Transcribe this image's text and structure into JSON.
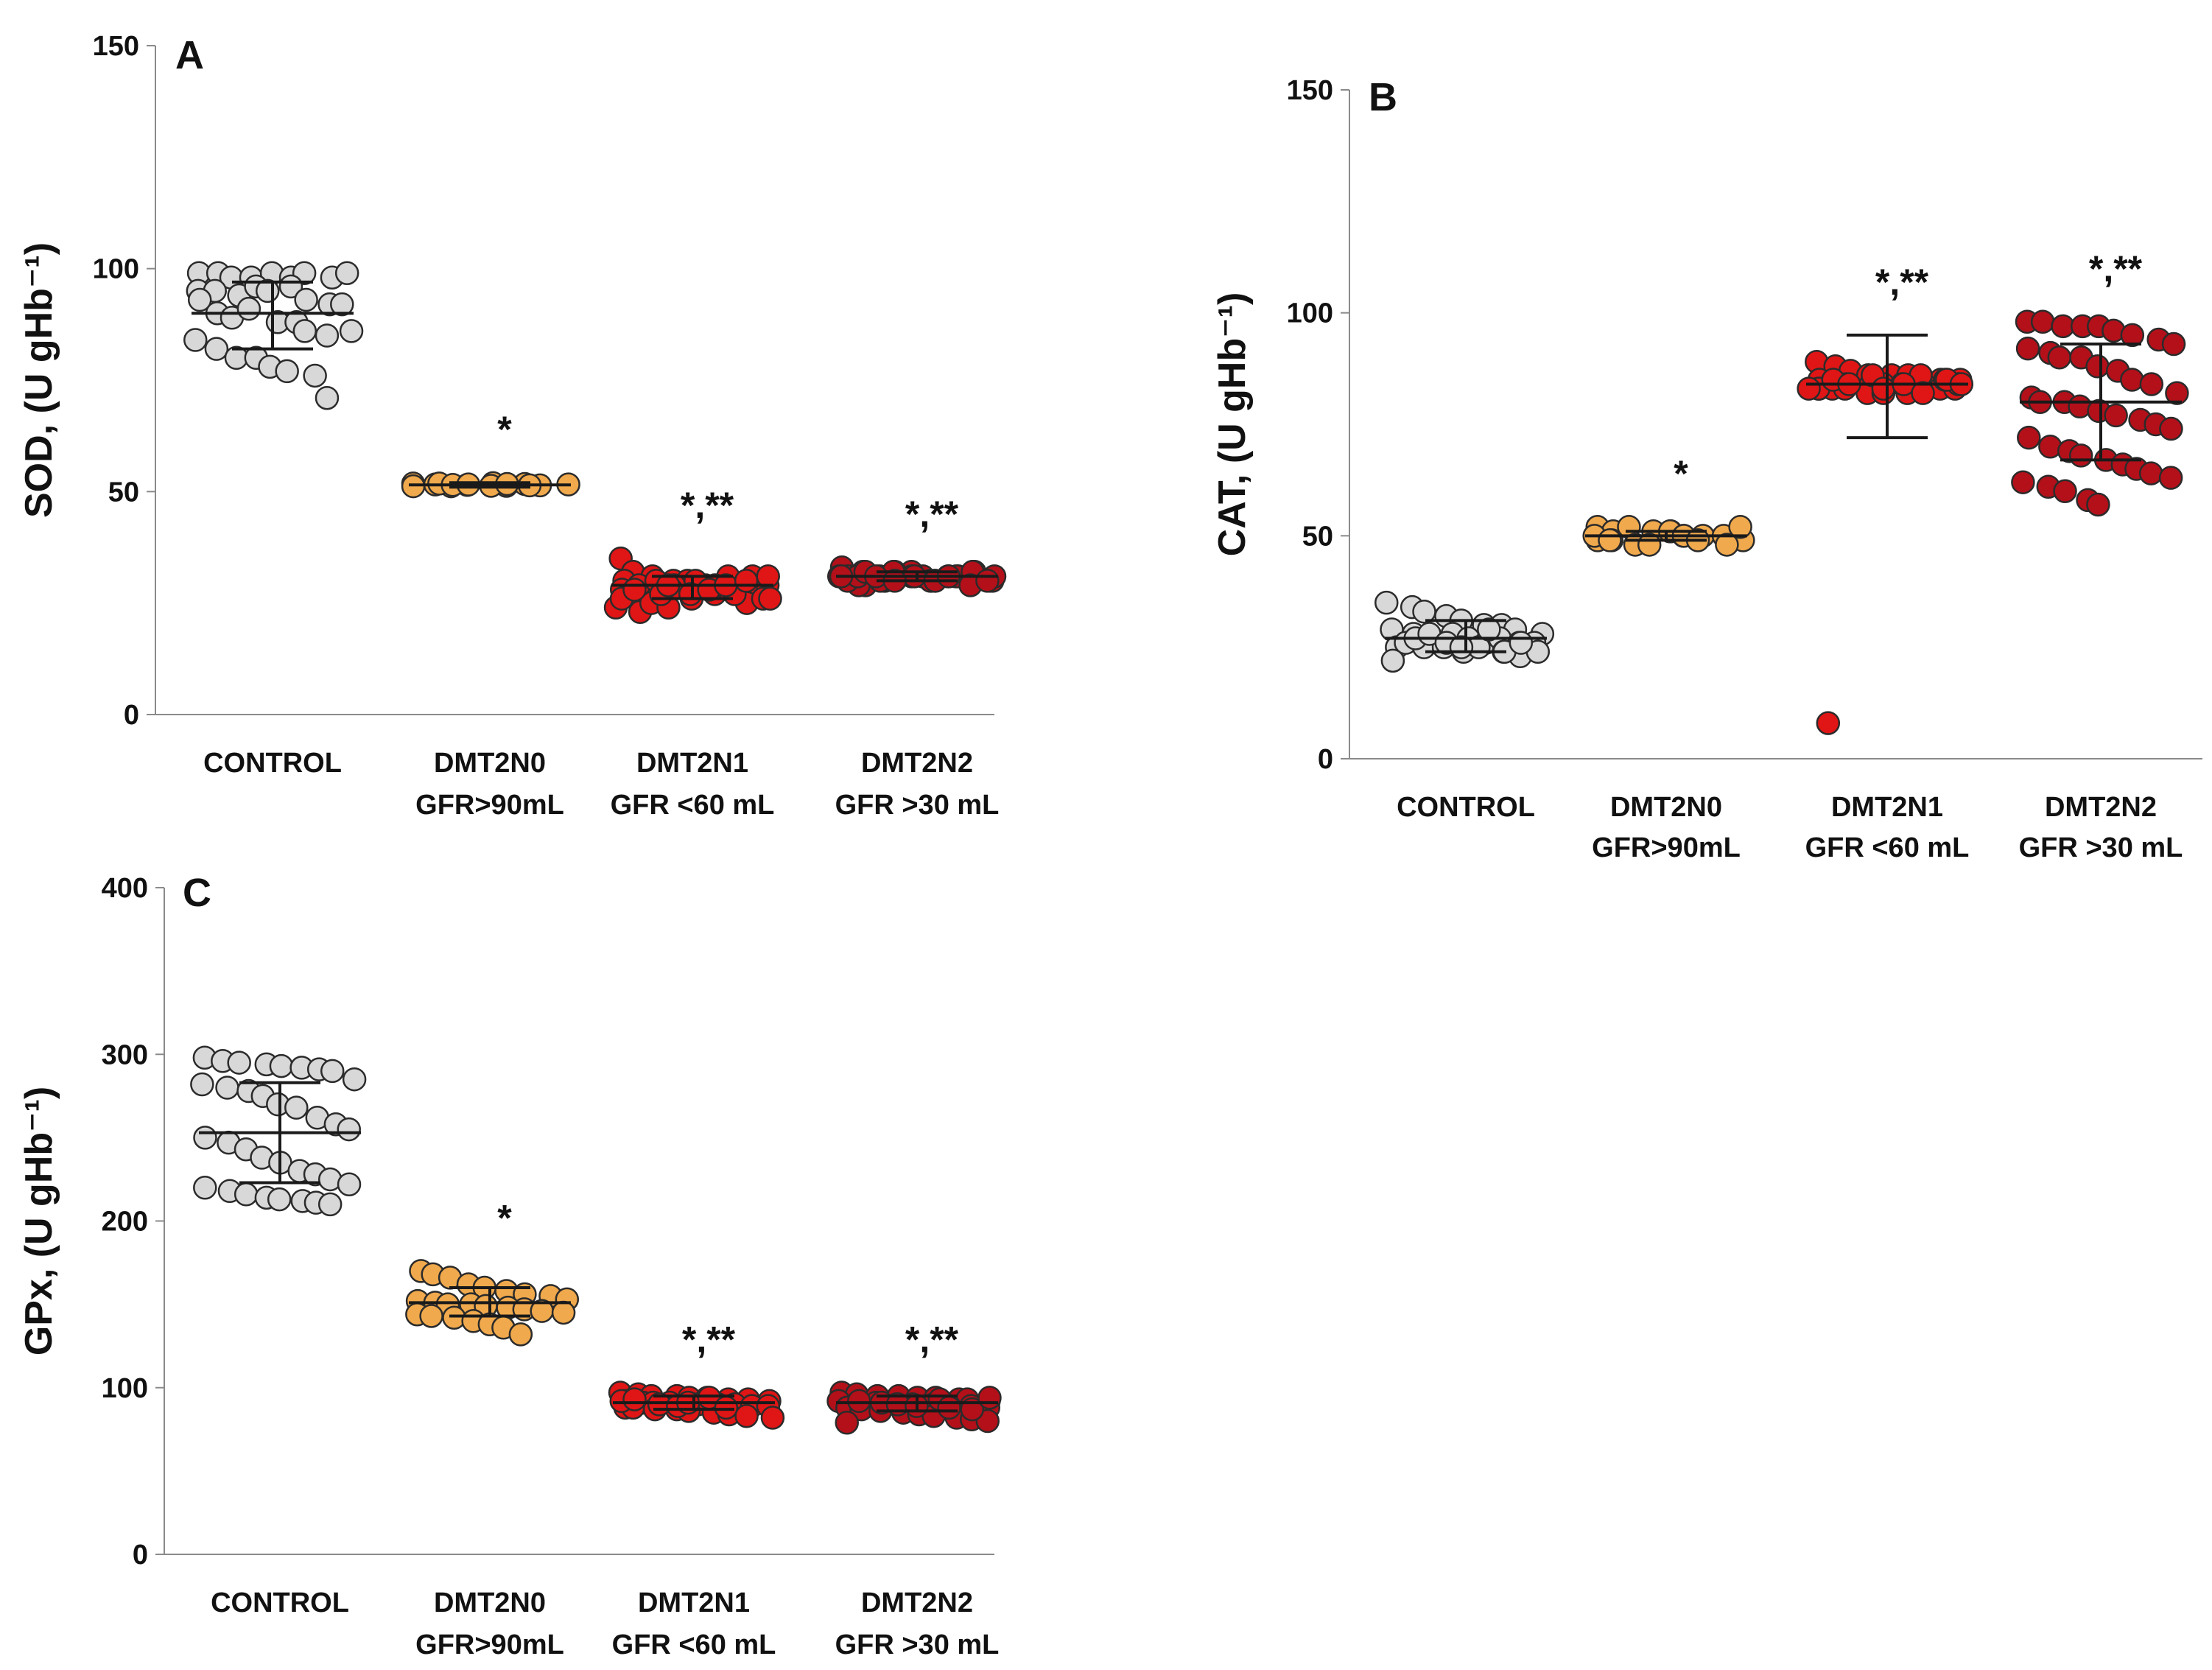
{
  "chart_data": [
    {
      "type": "scatter",
      "panel": "A",
      "ylabel": "SOD, (U gHb⁻¹)",
      "ylim": [
        0,
        150
      ],
      "yticks": [
        "0",
        "50",
        "100",
        "150"
      ],
      "groups": [
        {
          "label_line1": "CONTROL",
          "label_line2": "",
          "color": "#d8d8d8",
          "mean": 90,
          "sd_low": 82,
          "sd_high": 97,
          "significance": "",
          "values": [
            99,
            99,
            98,
            98,
            99,
            98,
            99,
            98,
            99,
            95,
            95,
            94,
            96,
            95,
            96,
            93,
            92,
            92,
            93,
            90,
            89,
            91,
            88,
            88,
            86,
            85,
            86,
            84,
            82,
            80,
            80,
            78,
            77,
            76,
            71
          ]
        },
        {
          "label_line1": "DMT2N0",
          "label_line2": "GFR>90mL",
          "color": "#f0a94c",
          "mean": 51.5,
          "sd_low": 51,
          "sd_high": 52,
          "significance": "*",
          "values": [
            51.8,
            51.6,
            51.2,
            51.5,
            51.9,
            51.3,
            51.7,
            51.4,
            51.6,
            51.2,
            51.8,
            51.5,
            51.6,
            51.3,
            51.7,
            51.4
          ]
        },
        {
          "label_line1": "DMT2N1",
          "label_line2": "GFR <60 mL",
          "color": "#e01515",
          "mean": 29,
          "sd_low": 26,
          "sd_high": 31,
          "significance": "*,**",
          "values": [
            35,
            32,
            31,
            30,
            30,
            29,
            31,
            28,
            29,
            30,
            27,
            28,
            29,
            26,
            27,
            28,
            25,
            26,
            24,
            23,
            25,
            28,
            30,
            29,
            27,
            31,
            26,
            28,
            29,
            30,
            24,
            27,
            28,
            29,
            30,
            31,
            26,
            28,
            27,
            29
          ]
        },
        {
          "label_line1": "DMT2N2",
          "label_line2": "GFR >30 mL",
          "color": "#b3101a",
          "mean": 31,
          "sd_low": 30,
          "sd_high": 32,
          "significance": "*,**",
          "values": [
            33,
            32,
            31,
            32,
            31,
            30,
            31,
            32,
            30,
            31,
            29,
            30,
            31,
            32,
            30,
            31,
            32,
            30,
            31,
            29,
            30,
            32,
            31,
            30,
            31,
            32,
            31,
            30,
            31,
            30,
            32,
            31,
            30,
            31,
            29,
            30,
            31,
            32,
            31,
            30
          ]
        }
      ]
    },
    {
      "type": "scatter",
      "panel": "B",
      "ylabel": "CAT, (U gHb⁻¹)",
      "ylim": [
        0,
        150
      ],
      "yticks": [
        "0",
        "50",
        "100",
        "150"
      ],
      "groups": [
        {
          "label_line1": "CONTROL",
          "label_line2": "",
          "color": "#d8d8d8",
          "mean": 27,
          "sd_low": 24,
          "sd_high": 31,
          "significance": "",
          "values": [
            35,
            34,
            33,
            32,
            31,
            30,
            30,
            29,
            28,
            29,
            28,
            27,
            28,
            27,
            26,
            27,
            26,
            26,
            25,
            26,
            25,
            25,
            24,
            25,
            24,
            23,
            24,
            22,
            27,
            28,
            26,
            25,
            29,
            24,
            26
          ]
        },
        {
          "label_line1": "DMT2N0",
          "label_line2": "GFR>90mL",
          "color": "#f0a94c",
          "mean": 50,
          "sd_low": 49,
          "sd_high": 51,
          "significance": "*",
          "values": [
            52,
            51,
            52,
            51,
            51,
            50,
            50,
            50,
            49,
            49,
            49,
            48,
            48,
            51,
            50,
            49,
            48,
            52,
            50,
            49
          ]
        },
        {
          "label_line1": "DMT2N1",
          "label_line2": "GFR <60 mL",
          "color": "#e01515",
          "mean": 84,
          "sd_low": 72,
          "sd_high": 95,
          "significance": "*,**",
          "values": [
            89,
            88,
            87,
            86,
            86,
            86,
            85,
            85,
            85,
            85,
            84,
            84,
            84,
            84,
            84,
            84,
            83,
            83,
            83,
            83,
            83,
            82,
            82,
            82,
            86,
            85,
            84,
            83,
            85,
            84,
            86,
            83,
            84,
            82,
            85,
            84,
            83,
            8
          ]
        },
        {
          "label_line1": "DMT2N2",
          "label_line2": "GFR >30 mL",
          "color": "#b3101a",
          "mean": 80,
          "sd_low": 67,
          "sd_high": 93,
          "significance": "*,**",
          "values": [
            98,
            98,
            97,
            97,
            97,
            96,
            95,
            94,
            93,
            92,
            91,
            90,
            90,
            88,
            87,
            85,
            84,
            82,
            81,
            80,
            80,
            79,
            78,
            77,
            76,
            75,
            74,
            72,
            70,
            69,
            68,
            67,
            66,
            65,
            64,
            63,
            62,
            61,
            60,
            58,
            57
          ]
        }
      ]
    },
    {
      "type": "scatter",
      "panel": "C",
      "ylabel": "GPx, (U gHb⁻¹)",
      "ylim": [
        0,
        400
      ],
      "yticks": [
        "0",
        "100",
        "200",
        "300",
        "400"
      ],
      "groups": [
        {
          "label_line1": "CONTROL",
          "label_line2": "",
          "color": "#d8d8d8",
          "mean": 253,
          "sd_low": 223,
          "sd_high": 283,
          "significance": "",
          "values": [
            298,
            296,
            295,
            294,
            293,
            292,
            291,
            290,
            285,
            282,
            280,
            278,
            275,
            270,
            268,
            262,
            258,
            255,
            250,
            247,
            243,
            238,
            235,
            230,
            228,
            225,
            222,
            220,
            218,
            216,
            214,
            213,
            212,
            211,
            210
          ]
        },
        {
          "label_line1": "DMT2N0",
          "label_line2": "GFR>90mL",
          "color": "#f0a94c",
          "mean": 151,
          "sd_low": 143,
          "sd_high": 160,
          "significance": "*",
          "values": [
            170,
            168,
            166,
            162,
            160,
            158,
            156,
            155,
            153,
            152,
            151,
            150,
            150,
            149,
            148,
            147,
            146,
            145,
            144,
            143,
            142,
            140,
            138,
            136,
            132
          ]
        },
        {
          "label_line1": "DMT2N1",
          "label_line2": "GFR <60 mL",
          "color": "#e01515",
          "mean": 91,
          "sd_low": 87,
          "sd_high": 95,
          "significance": "*,**",
          "values": [
            97,
            96,
            95,
            95,
            94,
            94,
            93,
            93,
            92,
            92,
            91,
            91,
            91,
            90,
            90,
            90,
            89,
            89,
            88,
            88,
            87,
            87,
            86,
            85,
            84,
            83,
            82,
            92,
            93,
            90,
            89,
            91,
            94,
            88
          ]
        },
        {
          "label_line1": "DMT2N2",
          "label_line2": "GFR >30 mL",
          "color": "#b3101a",
          "mean": 91,
          "sd_low": 86,
          "sd_high": 95,
          "significance": "*,**",
          "values": [
            97,
            96,
            95,
            95,
            94,
            94,
            93,
            93,
            92,
            92,
            91,
            91,
            90,
            90,
            90,
            89,
            89,
            88,
            88,
            87,
            86,
            85,
            84,
            83,
            82,
            81,
            80,
            79,
            92,
            91,
            90,
            89,
            93,
            88,
            87,
            94
          ]
        }
      ]
    }
  ]
}
